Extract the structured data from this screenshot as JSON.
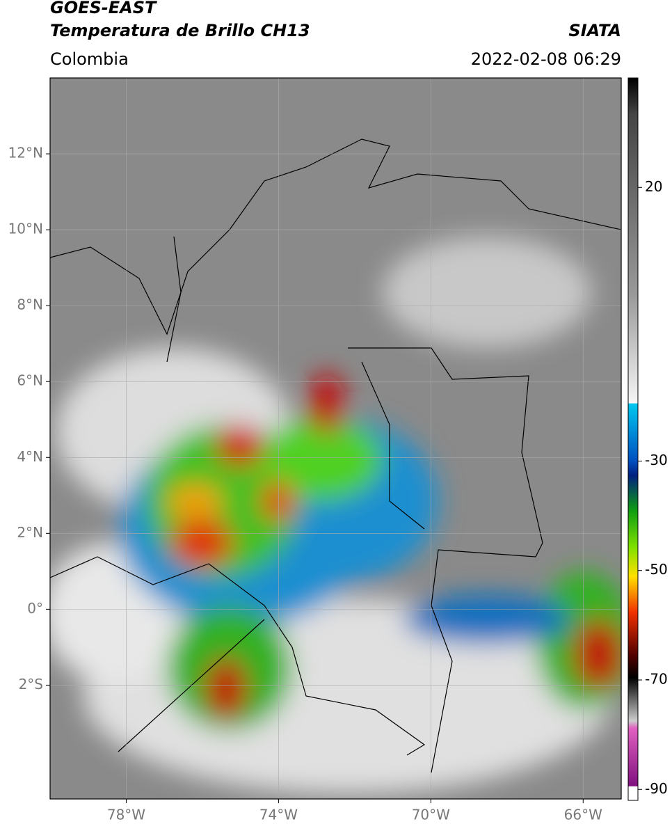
{
  "header": {
    "title": "GOES-EAST",
    "subtitle": "Temperatura de Brillo CH13",
    "source": "SIATA",
    "region": "Colombia",
    "datetime": "2022-02-08 06:29"
  },
  "map": {
    "xlim": [
      -80,
      -65
    ],
    "ylim": [
      -5,
      14
    ],
    "xticks": [
      {
        "value": -78,
        "label": "78°W"
      },
      {
        "value": -74,
        "label": "74°W"
      },
      {
        "value": -70,
        "label": "70°W"
      },
      {
        "value": -66,
        "label": "66°W"
      }
    ],
    "yticks": [
      {
        "value": 12,
        "label": "12°N"
      },
      {
        "value": 10,
        "label": "10°N"
      },
      {
        "value": 8,
        "label": "8°N"
      },
      {
        "value": 6,
        "label": "6°N"
      },
      {
        "value": 4,
        "label": "4°N"
      },
      {
        "value": 2,
        "label": "2°N"
      },
      {
        "value": 0,
        "label": "0°"
      },
      {
        "value": -2,
        "label": "2°S"
      }
    ],
    "grid": true
  },
  "colorbar": {
    "lim": [
      -92,
      40
    ],
    "ticks": [
      20,
      -30,
      -50,
      -70,
      -90
    ]
  }
}
